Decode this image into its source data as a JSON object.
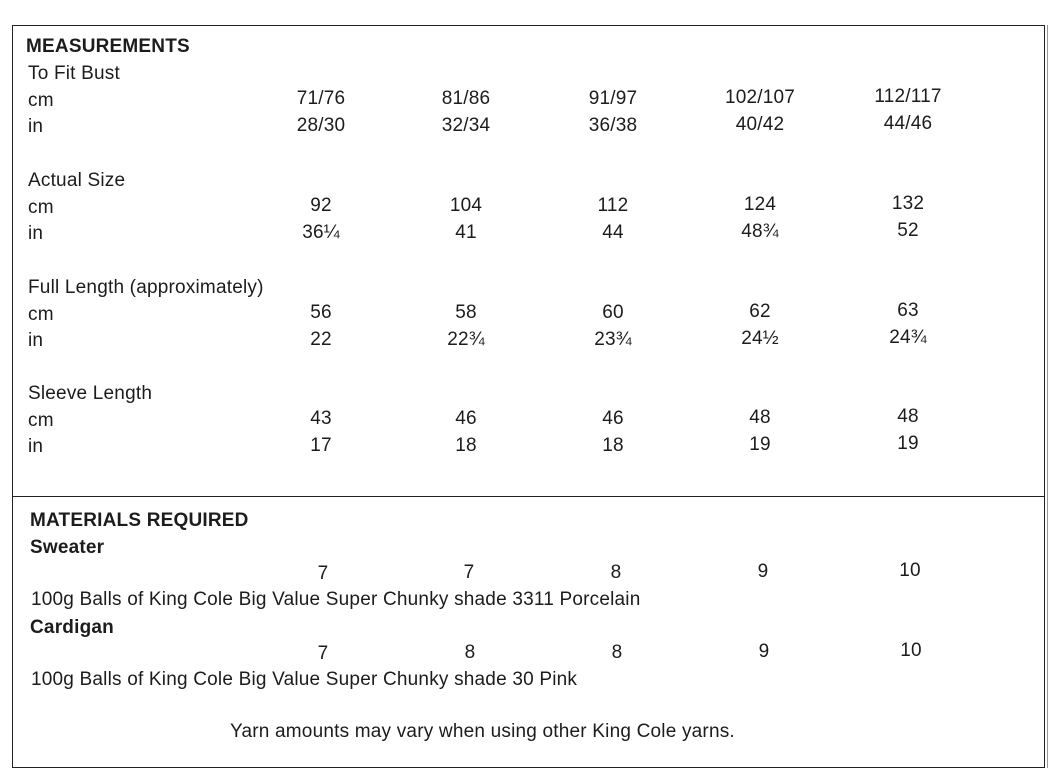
{
  "measurements": {
    "heading": "MEASUREMENTS",
    "groups": [
      {
        "label": "To Fit Bust",
        "cm_label": "cm",
        "in_label": "in",
        "cm": [
          "71/76",
          "81/86",
          "91/97",
          "102/107",
          "112/117"
        ],
        "in": [
          "28/30",
          "32/34",
          "36/38",
          "40/42",
          "44/46"
        ]
      },
      {
        "label": "Actual Size",
        "cm_label": "cm",
        "in_label": "in",
        "cm": [
          "92",
          "104",
          "112",
          "124",
          "132"
        ],
        "in": [
          "36¼",
          "41",
          "44",
          "48¾",
          "52"
        ]
      },
      {
        "label": "Full Length (approximately)",
        "cm_label": "cm",
        "in_label": "in",
        "cm": [
          "56",
          "58",
          "60",
          "62",
          "63"
        ],
        "in": [
          "22",
          "22¾",
          "23¾",
          "24½",
          "24¾"
        ]
      },
      {
        "label": "Sleeve Length",
        "cm_label": "cm",
        "in_label": "in",
        "cm": [
          "43",
          "46",
          "46",
          "48",
          "48"
        ],
        "in": [
          "17",
          "18",
          "18",
          "19",
          "19"
        ]
      }
    ]
  },
  "materials": {
    "heading": "MATERIALS REQUIRED",
    "items": [
      {
        "name": "Sweater",
        "quantities": [
          "7",
          "7",
          "8",
          "9",
          "10"
        ],
        "description": "100g Balls of King Cole Big Value Super Chunky shade 3311 Porcelain"
      },
      {
        "name": "Cardigan",
        "quantities": [
          "7",
          "8",
          "8",
          "9",
          "10"
        ],
        "description": "100g Balls of King Cole Big Value Super Chunky shade 30 Pink"
      }
    ],
    "note": "Yarn amounts may vary when using other King Cole yarns."
  }
}
